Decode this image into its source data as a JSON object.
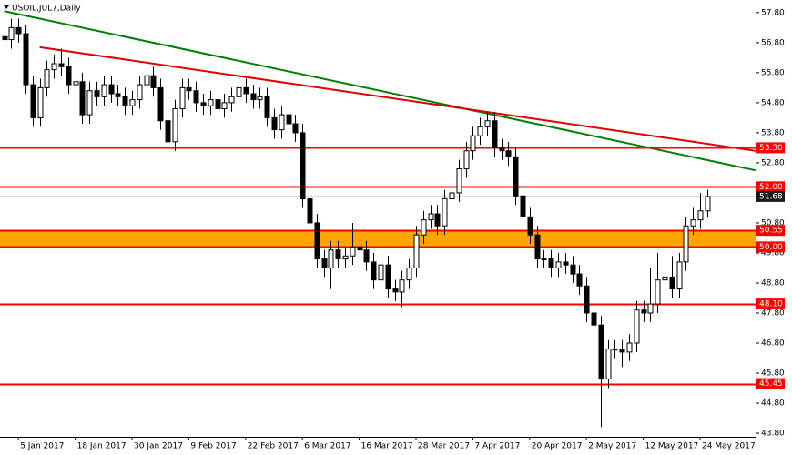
{
  "chart_data": {
    "type": "candlestick",
    "title": "USOIL,JUL7,Daily",
    "categories": [
      null,
      null,
      "5 Jan 2017",
      null,
      null,
      null,
      null,
      null,
      null,
      null,
      "18 Jan 2017",
      null,
      null,
      null,
      null,
      null,
      null,
      null,
      "30 Jan 2017",
      null,
      null,
      null,
      null,
      null,
      null,
      null,
      "9 Feb 2017",
      null,
      null,
      null,
      null,
      null,
      null,
      null,
      "22 Feb 2017",
      null,
      null,
      null,
      null,
      null,
      null,
      null,
      "6 Mar 2017",
      null,
      null,
      null,
      null,
      null,
      null,
      null,
      "16 Mar 2017",
      null,
      null,
      null,
      null,
      null,
      null,
      null,
      "28 Mar 2017",
      null,
      null,
      null,
      null,
      null,
      null,
      null,
      "7 Apr 2017",
      null,
      null,
      null,
      null,
      null,
      null,
      null,
      "20 Apr 2017",
      null,
      null,
      null,
      null,
      null,
      null,
      null,
      "2 May 2017",
      null,
      null,
      null,
      null,
      null,
      null,
      null,
      "12 May 2017",
      null,
      null,
      null,
      null,
      null,
      null,
      null,
      "24 May 2017",
      null
    ],
    "open": [
      57.0,
      56.9,
      57.3,
      57.1,
      55.4,
      54.3,
      55.3,
      55.9,
      56.1,
      56.0,
      55.4,
      55.5,
      54.4,
      55.2,
      55.0,
      55.4,
      55.1,
      55.0,
      54.7,
      54.9,
      55.4,
      55.7,
      55.3,
      54.2,
      53.5,
      54.6,
      55.3,
      55.2,
      54.8,
      54.7,
      54.9,
      54.6,
      54.8,
      55.0,
      55.3,
      55.1,
      54.9,
      55.0,
      54.3,
      53.9,
      54.4,
      54.1,
      53.8,
      51.6,
      50.8,
      49.6,
      49.3,
      49.9,
      49.6,
      49.7,
      50.0,
      49.9,
      49.5,
      48.9,
      49.4,
      48.6,
      48.5,
      48.9,
      49.3,
      50.4,
      50.9,
      51.1,
      50.7,
      51.6,
      51.8,
      52.6,
      53.2,
      53.7,
      54.0,
      54.2,
      53.3,
      53.2,
      53.0,
      51.7,
      51.0,
      50.4,
      49.6,
      49.6,
      49.3,
      49.5,
      49.4,
      49.1,
      48.7,
      47.8,
      47.4,
      45.6,
      46.6,
      46.6,
      46.5,
      46.8,
      47.9,
      47.8,
      48.1,
      48.9,
      49.0,
      48.6,
      49.5,
      50.7,
      50.9,
      51.2
    ],
    "high": [
      57.3,
      57.6,
      57.6,
      57.4,
      55.7,
      55.6,
      56.2,
      56.4,
      56.6,
      56.3,
      55.8,
      55.8,
      55.5,
      55.5,
      55.7,
      55.7,
      55.4,
      55.3,
      55.2,
      55.7,
      56.0,
      56.0,
      55.6,
      54.5,
      54.9,
      55.6,
      55.6,
      55.5,
      55.1,
      55.2,
      55.2,
      55.1,
      55.3,
      55.6,
      55.6,
      55.4,
      55.3,
      55.3,
      54.6,
      54.7,
      54.7,
      54.4,
      54.1,
      51.9,
      51.1,
      49.9,
      50.2,
      50.2,
      50.0,
      50.8,
      50.3,
      50.2,
      49.8,
      49.7,
      49.7,
      48.9,
      49.2,
      49.6,
      50.7,
      51.2,
      51.4,
      51.4,
      51.9,
      52.1,
      52.9,
      53.5,
      54.0,
      54.3,
      54.5,
      54.5,
      53.6,
      53.5,
      53.3,
      52.0,
      51.3,
      50.7,
      49.9,
      49.9,
      49.8,
      49.8,
      49.7,
      49.4,
      49.0,
      48.1,
      47.7,
      46.9,
      46.9,
      46.9,
      47.1,
      48.2,
      48.2,
      49.3,
      49.8,
      49.6,
      49.7,
      49.8,
      51.0,
      51.3,
      51.8,
      51.9
    ],
    "low": [
      56.6,
      56.6,
      56.8,
      55.1,
      54.0,
      54.0,
      55.0,
      55.6,
      55.7,
      55.1,
      55.1,
      54.1,
      54.1,
      54.7,
      54.7,
      54.8,
      54.7,
      54.4,
      54.4,
      54.6,
      55.1,
      55.0,
      53.9,
      53.2,
      53.2,
      54.3,
      54.9,
      54.5,
      54.4,
      54.4,
      54.3,
      54.3,
      54.5,
      54.7,
      54.8,
      54.6,
      54.6,
      54.0,
      53.6,
      53.6,
      53.8,
      53.5,
      51.3,
      50.5,
      49.3,
      49.0,
      48.6,
      49.3,
      49.3,
      49.4,
      49.6,
      49.2,
      48.6,
      48.0,
      48.3,
      48.2,
      48.0,
      48.6,
      49.0,
      50.1,
      50.6,
      50.4,
      50.4,
      51.3,
      51.5,
      52.3,
      52.9,
      53.4,
      53.7,
      53.0,
      52.9,
      52.7,
      51.4,
      50.7,
      50.1,
      49.3,
      49.3,
      49.0,
      49.0,
      49.1,
      48.8,
      48.4,
      47.5,
      47.1,
      44.0,
      45.3,
      46.3,
      46.0,
      46.2,
      46.5,
      47.5,
      47.5,
      47.8,
      48.6,
      48.3,
      48.3,
      49.2,
      50.4,
      50.6,
      51.0
    ],
    "close": [
      56.9,
      57.3,
      57.1,
      55.4,
      54.3,
      55.3,
      55.9,
      56.1,
      56.0,
      55.4,
      55.5,
      54.4,
      55.2,
      55.0,
      55.4,
      55.1,
      55.0,
      54.7,
      54.9,
      55.4,
      55.7,
      55.3,
      54.2,
      53.5,
      54.6,
      55.3,
      55.2,
      54.8,
      54.7,
      54.9,
      54.6,
      54.8,
      55.0,
      55.3,
      55.1,
      54.9,
      55.0,
      54.3,
      53.9,
      54.4,
      54.1,
      53.8,
      51.6,
      50.8,
      49.6,
      49.3,
      49.9,
      49.6,
      49.7,
      50.0,
      49.9,
      49.5,
      48.9,
      49.4,
      48.6,
      48.5,
      48.9,
      49.3,
      50.4,
      50.9,
      51.1,
      50.7,
      51.6,
      51.8,
      52.6,
      53.2,
      53.7,
      54.0,
      54.2,
      53.3,
      53.2,
      53.0,
      51.7,
      51.0,
      50.4,
      49.6,
      49.6,
      49.3,
      49.5,
      49.4,
      49.1,
      48.7,
      47.8,
      47.4,
      45.6,
      46.6,
      46.6,
      46.5,
      46.8,
      47.9,
      47.8,
      48.1,
      48.9,
      49.0,
      48.6,
      49.5,
      50.7,
      50.9,
      51.2,
      51.68
    ],
    "up_color": "#ffffff",
    "down_color": "#000000",
    "ylim": [
      43.68,
      58.22
    ],
    "yticks": [
      {
        "value": 57.8,
        "label": "57.80"
      },
      {
        "value": 56.8,
        "label": "56.80"
      },
      {
        "value": 55.8,
        "label": "55.80"
      },
      {
        "value": 54.8,
        "label": "54.80"
      },
      {
        "value": 53.8,
        "label": "53.80"
      },
      {
        "value": 52.8,
        "label": "52.80"
      },
      {
        "value": 50.8,
        "label": "50.80"
      },
      {
        "value": 49.8,
        "label": "49.80"
      },
      {
        "value": 48.8,
        "label": "48.80"
      },
      {
        "value": 47.8,
        "label": "47.80"
      },
      {
        "value": 46.8,
        "label": "46.80"
      },
      {
        "value": 45.8,
        "label": "45.80"
      },
      {
        "value": 44.8,
        "label": "44.80"
      },
      {
        "value": 43.8,
        "label": "43.80"
      }
    ],
    "grid": false,
    "levels": [
      {
        "value": 53.3,
        "label": "53.30"
      },
      {
        "value": 52.0,
        "label": "52.00"
      },
      {
        "value": 50.55,
        "label": "50.55"
      },
      {
        "value": 50.0,
        "label": "50.00"
      },
      {
        "value": 48.1,
        "label": "48.10"
      },
      {
        "value": 45.45,
        "label": "45.45"
      }
    ],
    "level_color": "#ff0000",
    "zone": {
      "low": 50.0,
      "high": 50.55,
      "color": "#ffa500"
    },
    "last_price": 51.68,
    "trendlines": [
      {
        "color": "#008000",
        "x": [
          0,
          105.8
        ],
        "y": [
          57.85,
          52.55
        ]
      },
      {
        "color": "#e00000",
        "x": [
          5,
          105.8
        ],
        "y": [
          56.65,
          53.2
        ]
      }
    ]
  }
}
